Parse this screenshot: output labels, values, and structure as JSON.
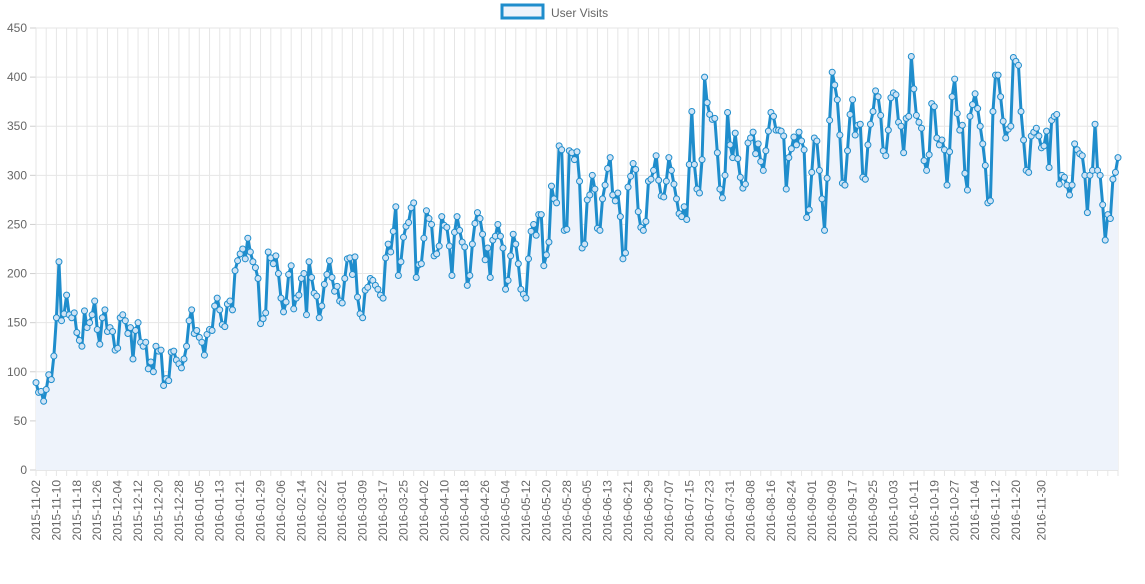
{
  "chart_data": {
    "type": "line",
    "title": "",
    "xlabel": "",
    "ylabel": "",
    "ylim": [
      0,
      450
    ],
    "yticks": [
      0,
      50,
      100,
      150,
      200,
      250,
      300,
      350,
      400,
      450
    ],
    "grid": true,
    "legend": "top-center",
    "start_date": "2015-11-02",
    "xtick_labels": [
      "2015-11-02",
      "2015-11-10",
      "2015-11-18",
      "2015-11-26",
      "2015-12-04",
      "2015-12-12",
      "2015-12-20",
      "2015-12-28",
      "2016-01-05",
      "2016-01-13",
      "2016-01-21",
      "2016-01-29",
      "2016-02-06",
      "2016-02-14",
      "2016-02-22",
      "2016-03-01",
      "2016-03-09",
      "2016-03-17",
      "2016-03-25",
      "2016-04-02",
      "2016-04-10",
      "2016-04-18",
      "2016-04-26",
      "2016-05-04",
      "2016-05-12",
      "2016-05-20",
      "2016-05-28",
      "2016-06-05",
      "2016-06-13",
      "2016-06-21",
      "2016-06-29",
      "2016-07-07",
      "2016-07-15",
      "2016-07-23",
      "2016-07-31",
      "2016-08-08",
      "2016-08-16",
      "2016-08-24",
      "2016-09-01",
      "2016-09-09",
      "2016-09-17",
      "2016-09-25",
      "2016-10-03",
      "2016-10-11",
      "2016-10-19",
      "2016-10-27",
      "2016-11-04",
      "2016-11-12",
      "2016-11-20",
      "2016-11-30"
    ],
    "series": [
      {
        "name": "User Visits",
        "color": "#1f8dcc",
        "fill": "#eef3fb",
        "values": [
          89,
          79,
          80,
          70,
          82,
          97,
          92,
          116,
          155,
          212,
          152,
          159,
          178,
          158,
          155,
          160,
          140,
          132,
          126,
          162,
          145,
          150,
          158,
          172,
          143,
          128,
          155,
          163,
          141,
          145,
          141,
          122,
          124,
          155,
          158,
          152,
          139,
          145,
          113,
          142,
          150,
          130,
          126,
          130,
          103,
          110,
          100,
          126,
          121,
          122,
          86,
          93,
          91,
          120,
          121,
          112,
          108,
          104,
          113,
          126,
          152,
          163,
          139,
          142,
          135,
          130,
          117,
          138,
          143,
          142,
          167,
          175,
          163,
          148,
          146,
          169,
          172,
          163,
          203,
          213,
          220,
          225,
          215,
          236,
          222,
          212,
          206,
          195,
          149,
          154,
          160,
          222,
          216,
          210,
          218,
          200,
          175,
          161,
          171,
          199,
          208,
          164,
          175,
          178,
          195,
          200,
          158,
          212,
          196,
          180,
          177,
          155,
          167,
          189,
          199,
          213,
          196,
          182,
          187,
          172,
          170,
          195,
          215,
          216,
          199,
          217,
          176,
          159,
          155,
          183,
          186,
          195,
          193,
          188,
          184,
          178,
          175,
          216,
          230,
          222,
          243,
          268,
          198,
          212,
          237,
          248,
          252,
          267,
          272,
          196,
          209,
          210,
          236,
          264,
          256,
          250,
          218,
          220,
          228,
          258,
          249,
          247,
          228,
          198,
          242,
          258,
          244,
          232,
          227,
          188,
          198,
          230,
          251,
          262,
          256,
          240,
          214,
          226,
          196,
          234,
          238,
          250,
          238,
          226,
          184,
          193,
          218,
          240,
          230,
          210,
          184,
          179,
          175,
          215,
          243,
          250,
          239,
          260,
          260,
          208,
          219,
          232,
          289,
          276,
          272,
          330,
          326,
          244,
          245,
          325,
          323,
          316,
          324,
          294,
          226,
          230,
          275,
          280,
          300,
          286,
          246,
          244,
          276,
          290,
          307,
          318,
          280,
          274,
          282,
          258,
          215,
          221,
          288,
          299,
          312,
          306,
          263,
          247,
          244,
          253,
          294,
          296,
          305,
          320,
          295,
          279,
          278,
          294,
          318,
          305,
          291,
          276,
          261,
          258,
          268,
          255,
          311,
          365,
          311,
          286,
          282,
          316,
          400,
          374,
          362,
          357,
          358,
          323,
          286,
          277,
          300,
          364,
          331,
          318,
          343,
          317,
          298,
          287,
          291,
          333,
          338,
          344,
          322,
          332,
          314,
          305,
          325,
          345,
          364,
          360,
          346,
          346,
          345,
          340,
          286,
          318,
          327,
          339,
          331,
          344,
          335,
          326,
          257,
          265,
          303,
          338,
          335,
          305,
          276,
          244,
          297,
          356,
          405,
          392,
          377,
          341,
          292,
          290,
          325,
          362,
          377,
          341,
          351,
          352,
          298,
          296,
          331,
          352,
          365,
          386,
          380,
          361,
          325,
          320,
          346,
          379,
          384,
          382,
          354,
          350,
          323,
          358,
          360,
          421,
          388,
          361,
          354,
          348,
          315,
          305,
          321,
          373,
          370,
          338,
          331,
          336,
          326,
          290,
          324,
          380,
          398,
          363,
          346,
          351,
          302,
          285,
          360,
          372,
          383,
          368,
          350,
          332,
          310,
          272,
          274,
          365,
          402,
          402,
          380,
          355,
          338,
          347,
          350,
          420,
          416,
          412,
          365,
          336,
          305,
          303,
          340,
          344,
          348,
          340,
          328,
          330,
          345,
          308,
          356,
          360,
          362,
          291,
          300,
          298,
          290,
          280,
          290,
          332,
          326,
          322,
          320,
          300,
          262,
          300,
          305,
          352,
          305,
          300,
          270,
          234,
          260,
          256,
          296,
          303,
          318
        ]
      }
    ]
  }
}
